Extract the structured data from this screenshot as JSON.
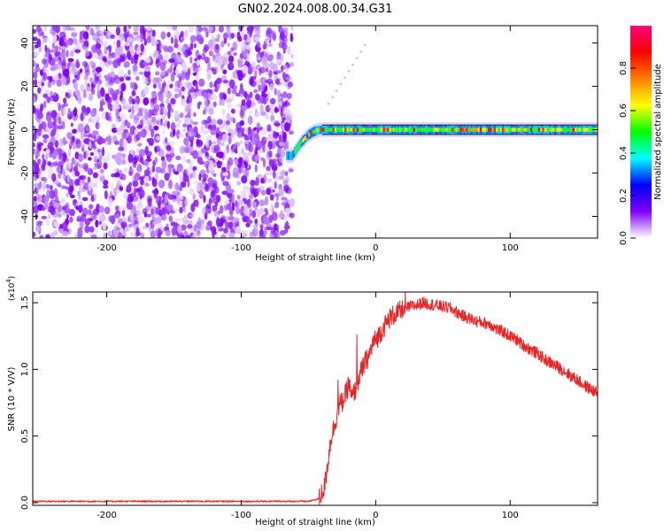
{
  "title": "GN02.2024.008.00.34.G31",
  "chart_data": [
    {
      "type": "heatmap",
      "xlabel": "Height of straight line (km)",
      "ylabel": "Frequency (Hz)",
      "xlim": [
        -255,
        165
      ],
      "ylim": [
        -50,
        48
      ],
      "x_ticks": [
        -200,
        -100,
        0,
        100
      ],
      "x_tick_labels": [
        "-200",
        "-100",
        "0",
        "100"
      ],
      "y_ticks": [
        -40,
        -20,
        0,
        20,
        40
      ],
      "y_tick_labels": [
        "-40",
        "-20",
        "0",
        "20",
        "40"
      ],
      "noise_region_x": [
        -255,
        -62
      ],
      "transition_x": [
        -62,
        -40
      ],
      "signal_frequency_hz": 0,
      "colorbar": {
        "label": "Normalized spectral amplitude",
        "range": [
          0.0,
          1.0
        ],
        "ticks": [
          0.0,
          0.2,
          0.4,
          0.6,
          0.8
        ],
        "tick_labels": [
          "0.0",
          "0.2",
          "0.4",
          "0.6",
          "0.8"
        ],
        "colors": [
          "#ffffff",
          "#7f00ff",
          "#0000ff",
          "#00ffff",
          "#00ff00",
          "#ffff00",
          "#ff7f00",
          "#ff0000",
          "#ff0080"
        ]
      }
    },
    {
      "type": "line",
      "xlabel": "Height of straight line (km)",
      "ylabel": "SNR (10 * V/V)",
      "y_exponent_label": "(x10",
      "y_exponent_power": "4",
      "y_exponent_close": ")",
      "xlim": [
        -255,
        165
      ],
      "ylim": [
        -0.02,
        1.58
      ],
      "x_ticks": [
        -200,
        -100,
        0,
        100
      ],
      "x_tick_labels": [
        "-200",
        "-100",
        "0",
        "100"
      ],
      "y_ticks": [
        0.0,
        0.5,
        1.0,
        1.5
      ],
      "y_tick_labels": [
        "0.0",
        "0.5",
        "1.0",
        "1.5"
      ],
      "line_color": "#ee2222",
      "series": [
        {
          "name": "SNR",
          "x": [
            -255,
            -200,
            -100,
            -50,
            -42,
            -38,
            -35,
            -33,
            -30,
            -28,
            -25,
            -22,
            -20,
            -18,
            -15,
            -12,
            -10,
            -8,
            -5,
            -2,
            0,
            5,
            10,
            15,
            20,
            25,
            30,
            35,
            40,
            45,
            50,
            55,
            60,
            65,
            70,
            75,
            80,
            85,
            90,
            95,
            100,
            105,
            110,
            115,
            120,
            125,
            130,
            135,
            140,
            145,
            150,
            155,
            160,
            165
          ],
          "y": [
            0.01,
            0.01,
            0.01,
            0.01,
            0.03,
            0.12,
            0.35,
            0.5,
            0.6,
            0.72,
            0.75,
            0.82,
            0.9,
            0.78,
            0.85,
            0.95,
            1.0,
            1.05,
            1.1,
            1.2,
            1.22,
            1.3,
            1.38,
            1.42,
            1.44,
            1.47,
            1.48,
            1.5,
            1.49,
            1.48,
            1.47,
            1.46,
            1.43,
            1.4,
            1.38,
            1.36,
            1.35,
            1.34,
            1.3,
            1.28,
            1.25,
            1.22,
            1.18,
            1.15,
            1.12,
            1.08,
            1.05,
            1.02,
            0.99,
            0.95,
            0.92,
            0.88,
            0.85,
            0.82
          ]
        }
      ],
      "spikes": [
        {
          "x": -14,
          "y": 1.26
        },
        {
          "x": -28,
          "y": 0.92
        },
        {
          "x": 22,
          "y": 1.58
        }
      ]
    }
  ]
}
